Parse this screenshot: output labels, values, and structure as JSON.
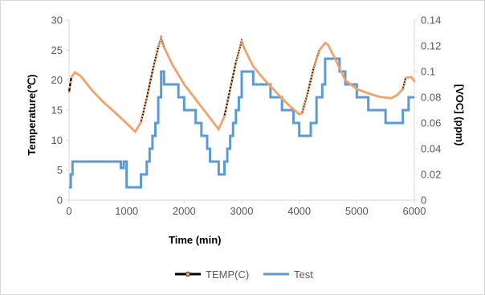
{
  "chart_data": {
    "type": "line",
    "title": "",
    "xlabel": "Time (min)",
    "ylabel": "Temperature(℃)",
    "y2label": "[VOC] (ppm)",
    "xlim": [
      0,
      6000
    ],
    "ylim": [
      0,
      30
    ],
    "y2lim": [
      0,
      0.14
    ],
    "x_ticks": [
      "0",
      "1000",
      "2000",
      "3000",
      "4000",
      "5000",
      "6000"
    ],
    "y_ticks": [
      "0",
      "5",
      "10",
      "15",
      "20",
      "25",
      "30"
    ],
    "y2_ticks": [
      "0",
      "0.02",
      "0.04",
      "0.06",
      "0.08",
      "0.1",
      "0.12",
      "0.14"
    ],
    "grid": false,
    "legend_position": "bottom",
    "colors": {
      "temp": "#000000",
      "temp_marker": "#f4a26b",
      "test": "#5b9bd5"
    },
    "series": [
      {
        "name": "TEMP(C)",
        "axis": "left",
        "x": [
          0,
          40,
          100,
          200,
          400,
          600,
          800,
          1000,
          1150,
          1250,
          1350,
          1450,
          1550,
          1600,
          1650,
          1800,
          2000,
          2200,
          2400,
          2600,
          2700,
          2800,
          2900,
          3000,
          3050,
          3200,
          3400,
          3600,
          3800,
          4000,
          4050,
          4150,
          4250,
          4350,
          4450,
          4500,
          4600,
          4800,
          5000,
          5200,
          5400,
          5600,
          5700,
          5800,
          5850,
          5950,
          6000
        ],
        "values": [
          18.0,
          20.5,
          21.3,
          20.7,
          18.3,
          16.3,
          14.6,
          12.8,
          11.4,
          13.0,
          17.0,
          21.5,
          25.5,
          27.0,
          25.5,
          22.5,
          19.3,
          16.8,
          14.3,
          11.8,
          14.0,
          18.5,
          23.0,
          26.5,
          25.2,
          22.3,
          20.0,
          18.0,
          16.0,
          14.3,
          14.5,
          18.0,
          22.0,
          25.0,
          26.2,
          25.9,
          24.0,
          20.0,
          18.5,
          17.8,
          17.2,
          17.0,
          17.5,
          18.5,
          20.4,
          20.5,
          19.8
        ]
      },
      {
        "name": "Test",
        "axis": "right",
        "x": [
          0,
          30,
          60,
          100,
          200,
          400,
          600,
          800,
          900,
          950,
          1000,
          1100,
          1200,
          1250,
          1350,
          1400,
          1450,
          1500,
          1550,
          1600,
          1650,
          1700,
          1800,
          1900,
          2000,
          2100,
          2200,
          2300,
          2400,
          2450,
          2500,
          2600,
          2650,
          2700,
          2750,
          2800,
          2850,
          2900,
          2950,
          3000,
          3200,
          3400,
          3500,
          3600,
          3700,
          3800,
          3900,
          4000,
          4100,
          4200,
          4300,
          4400,
          4450,
          4600,
          4700,
          4800,
          4900,
          5000,
          5200,
          5400,
          5500,
          5600,
          5700,
          5800,
          5900,
          6000
        ],
        "values": [
          0.01,
          0.02,
          0.03,
          0.03,
          0.03,
          0.03,
          0.03,
          0.03,
          0.025,
          0.03,
          0.01,
          0.01,
          0.01,
          0.02,
          0.03,
          0.04,
          0.05,
          0.06,
          0.08,
          0.1,
          0.09,
          0.09,
          0.09,
          0.08,
          0.07,
          0.07,
          0.06,
          0.05,
          0.04,
          0.03,
          0.03,
          0.02,
          0.02,
          0.03,
          0.04,
          0.05,
          0.06,
          0.07,
          0.08,
          0.1,
          0.09,
          0.09,
          0.08,
          0.08,
          0.07,
          0.07,
          0.06,
          0.05,
          0.05,
          0.06,
          0.08,
          0.09,
          0.11,
          0.11,
          0.1,
          0.09,
          0.09,
          0.08,
          0.07,
          0.07,
          0.06,
          0.06,
          0.06,
          0.07,
          0.08,
          0.08
        ]
      }
    ]
  }
}
